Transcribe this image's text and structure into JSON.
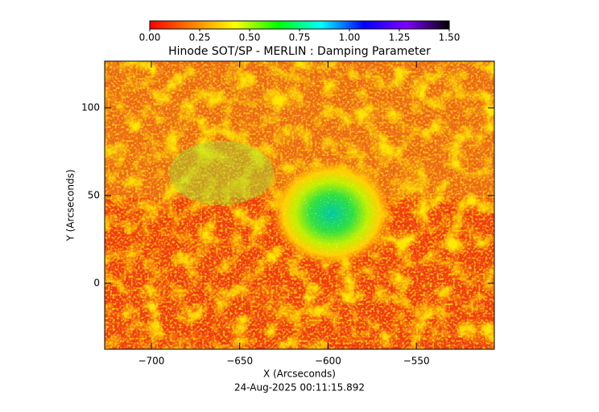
{
  "chart_data": {
    "type": "image",
    "title": "Hinode SOT/SP - MERLIN : Damping Parameter",
    "x_label": "X (Arcseconds)",
    "y_label": "Y (Arcseconds)",
    "footer": "24-Aug-2025 00:11:15.892",
    "xlim": [
      -726.4,
      -505.9
    ],
    "ylim": [
      -37.6,
      126.6
    ],
    "xticks": [
      -700,
      -650,
      -600,
      -550
    ],
    "yticks": [
      0,
      50,
      100
    ],
    "colorbar": {
      "lim": [
        0,
        1.5
      ],
      "ticks": [
        {
          "value": 0,
          "label": "0.00"
        },
        {
          "value": 0.25,
          "label": "0.25"
        },
        {
          "value": 0.5,
          "label": "0.50"
        },
        {
          "value": 0.75,
          "label": "0.75"
        },
        {
          "value": 1,
          "label": "1.00"
        },
        {
          "value": 1.25,
          "label": "1.25"
        },
        {
          "value": 1.5,
          "label": "1.50"
        }
      ],
      "colors": [
        "#ff0000",
        "#ff8000",
        "#ffff00",
        "#00ff00",
        "#00ffff",
        "#0000ff",
        "#8000ff",
        "#000000"
      ]
    }
  }
}
